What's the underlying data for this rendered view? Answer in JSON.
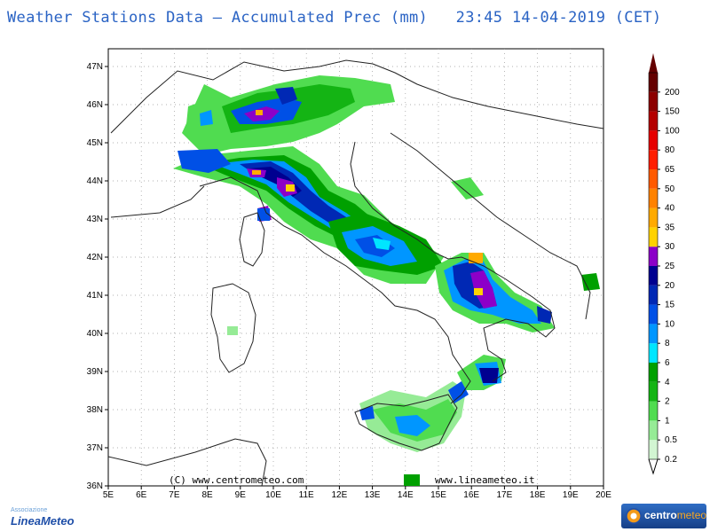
{
  "title": "Weather Stations Data — Accumulated Prec (mm)   23:45 14-04-2019 (CET)",
  "map": {
    "lat_labels": [
      "47N",
      "46N",
      "45N",
      "44N",
      "43N",
      "42N",
      "41N",
      "40N",
      "39N",
      "38N",
      "37N",
      "36N"
    ],
    "lon_labels": [
      "5E",
      "6E",
      "7E",
      "8E",
      "9E",
      "10E",
      "11E",
      "12E",
      "13E",
      "14E",
      "15E",
      "16E",
      "17E",
      "18E",
      "19E",
      "20E"
    ],
    "credit_left": "(C) www.centrometeo.com",
    "credit_right": "www.lineameteo.it"
  },
  "legend": {
    "levels": [
      "0.2",
      "0.5",
      "1",
      "2",
      "4",
      "6",
      "8",
      "10",
      "15",
      "20",
      "25",
      "30",
      "35",
      "40",
      "50",
      "65",
      "80",
      "100",
      "150",
      "200"
    ],
    "colors": [
      "#d2f5d2",
      "#96eb96",
      "#50dc50",
      "#14b414",
      "#00a000",
      "#00e6ff",
      "#0096ff",
      "#0050e6",
      "#0028b4",
      "#000090",
      "#8c00c8",
      "#ffd200",
      "#ffaa00",
      "#ff8200",
      "#ff5a00",
      "#ff1e00",
      "#e60000",
      "#b40000",
      "#8c0000",
      "#640000"
    ]
  },
  "logos": {
    "left_sub": "Associazione",
    "left_main": "LineaMeteo",
    "right_a": "centro",
    "right_b": "meteo"
  }
}
